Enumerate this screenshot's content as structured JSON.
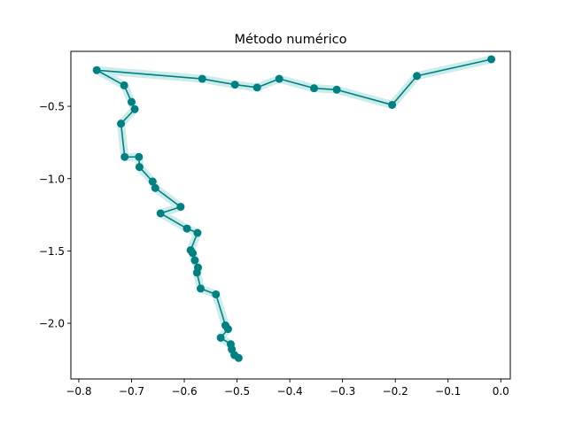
{
  "chart_data": {
    "type": "line",
    "title": "Método numérico",
    "xlabel": "",
    "ylabel": "",
    "xlim": [
      -0.815,
      0.018
    ],
    "ylim": [
      -2.385,
      -0.12
    ],
    "x_ticks": [
      -0.8,
      -0.7,
      -0.6,
      -0.5,
      -0.4,
      -0.3,
      -0.2,
      -0.1,
      0.0
    ],
    "x_tick_labels": [
      "−0.8",
      "−0.7",
      "−0.6",
      "−0.5",
      "−0.4",
      "−0.3",
      "−0.2",
      "−0.1",
      "0.0"
    ],
    "y_ticks": [
      -2.0,
      -1.5,
      -1.0,
      -0.5
    ],
    "y_tick_labels": [
      "−2.0",
      "−1.5",
      "−1.0",
      "−0.5"
    ],
    "grid": false,
    "colors": {
      "series": "#008080",
      "glow": "#8fd3d3"
    },
    "series": [
      {
        "x": [
          -0.018,
          -0.159,
          -0.206,
          -0.311,
          -0.354,
          -0.42,
          -0.462,
          -0.504,
          -0.566,
          -0.766,
          -0.714,
          -0.7,
          -0.694,
          -0.72,
          -0.713,
          -0.686,
          -0.685,
          -0.66,
          -0.655,
          -0.607,
          -0.645,
          -0.595,
          -0.575,
          -0.588,
          -0.584,
          -0.58,
          -0.574,
          -0.576,
          -0.569,
          -0.54,
          -0.522,
          -0.517,
          -0.531,
          -0.512,
          -0.51,
          -0.505,
          -0.497
        ],
        "y": [
          -0.175,
          -0.29,
          -0.49,
          -0.385,
          -0.375,
          -0.31,
          -0.37,
          -0.35,
          -0.31,
          -0.25,
          -0.355,
          -0.47,
          -0.52,
          -0.62,
          -0.85,
          -0.85,
          -0.92,
          -1.02,
          -1.065,
          -1.195,
          -1.24,
          -1.345,
          -1.375,
          -1.495,
          -1.515,
          -1.565,
          -1.615,
          -1.65,
          -1.76,
          -1.8,
          -2.015,
          -2.04,
          -2.1,
          -2.145,
          -2.18,
          -2.22,
          -2.24
        ]
      }
    ]
  }
}
